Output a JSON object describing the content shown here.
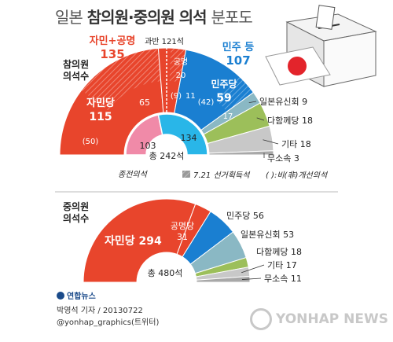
{
  "title": {
    "part1": "일본",
    "part2": "참의원·중의원 의석",
    "part3": "분포도"
  },
  "chart_data": [
    {
      "type": "pie",
      "name_text": "참의원 의석수",
      "total_label": "총 242석",
      "majority_label": "과반 121석",
      "outer": [
        {
          "label": "자민당",
          "value": 115,
          "sub": "(50)",
          "part_new": 65,
          "color": "#e8452c"
        },
        {
          "label": "공명",
          "value": 20,
          "sub": "(9)",
          "part_new": 11,
          "color": "#e8452c"
        },
        {
          "label": "민주당",
          "value": 59,
          "sub": "(42)",
          "part_new": 17,
          "color": "#1a7fd1"
        },
        {
          "label": "일본유신회",
          "value": 9,
          "color": "#8ab8c4"
        },
        {
          "label": "다함께당",
          "value": 18,
          "color": "#9cbf5a"
        },
        {
          "label": "기타",
          "value": 18,
          "color": "#c8c8c8"
        },
        {
          "label": "무소속",
          "value": 3,
          "color": "#a8a8a8"
        }
      ],
      "group_labels": [
        {
          "label": "자민+공명",
          "value": 135,
          "color": "#e8452c"
        },
        {
          "label": "민주 등",
          "value": 107,
          "color": "#1a7fd1"
        }
      ],
      "inner": [
        {
          "value": 103,
          "color": "#f08aa8"
        },
        {
          "value": 134,
          "color": "#29b6e8"
        }
      ],
      "inner_caption": "종전의석",
      "legend_hatch": "7.21 선거획득석",
      "legend_paren": "( ):비(非)개선의석"
    },
    {
      "type": "pie",
      "name_text": "중의원 의석수",
      "total_label": "총 480석",
      "outer": [
        {
          "label": "자민당",
          "value": 294,
          "color": "#e8452c"
        },
        {
          "label": "공명당",
          "value": 31,
          "color": "#e8452c"
        },
        {
          "label": "민주당",
          "value": 56,
          "color": "#1a7fd1"
        },
        {
          "label": "일본유신회",
          "value": 53,
          "color": "#8ab8c4"
        },
        {
          "label": "다함께당",
          "value": 18,
          "color": "#9cbf5a"
        },
        {
          "label": "기타",
          "value": 17,
          "color": "#c8c8c8"
        },
        {
          "label": "무소속",
          "value": 11,
          "color": "#a8a8a8"
        }
      ]
    }
  ],
  "credit": {
    "line1": "박영석 기자 / 20130722",
    "line2": "@yonhap_graphics(트위터)"
  },
  "logo": "연합뉴스",
  "watermark": "YONHAP NEWS"
}
